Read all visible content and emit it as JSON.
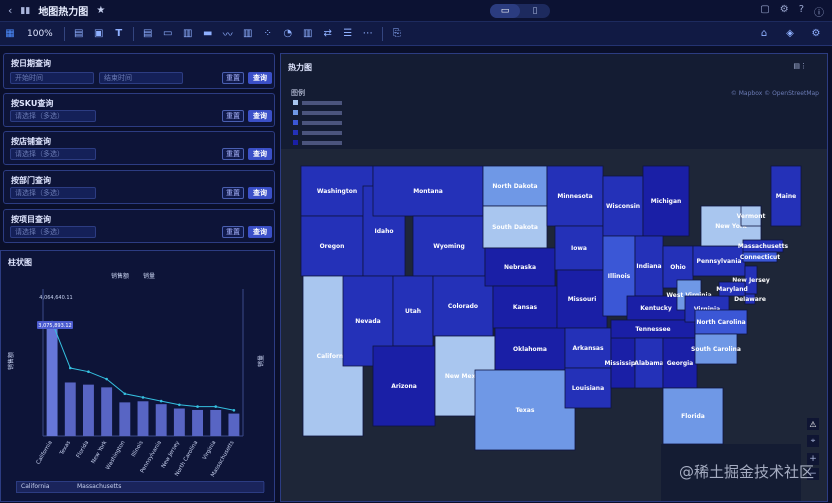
{
  "app": {
    "title": "地图热力图",
    "zoom": "100%",
    "device_modes": [
      "desktop",
      "mobile"
    ]
  },
  "filters": {
    "date": {
      "title": "按日期查询",
      "start_placeholder": "开始时间",
      "end_placeholder": "结束时间"
    },
    "sku": {
      "title": "按SKU查询",
      "placeholder": "请选择（多选）"
    },
    "store": {
      "title": "按店铺查询",
      "placeholder": "请选择（多选）"
    },
    "dept": {
      "title": "按部门查询",
      "placeholder": "请选择（多选）"
    },
    "project": {
      "title": "按项目查询",
      "placeholder": "请选择（多选）"
    },
    "reset_label": "重置",
    "query_label": "查询"
  },
  "map": {
    "title": "热力图",
    "legend_title": "图例",
    "attribution": "© Mapbox © OpenStreetMap",
    "legend": [
      {
        "color": "#a9c6ef"
      },
      {
        "color": "#6f98e6"
      },
      {
        "color": "#3b57d6"
      },
      {
        "color": "#2431b8"
      },
      {
        "color": "#1a1fa6"
      }
    ],
    "states": [
      "Washington",
      "Montana",
      "North Dakota",
      "Minnesota",
      "Oregon",
      "Idaho",
      "South Dakota",
      "Wisconsin",
      "Michigan",
      "Maine",
      "Wyoming",
      "Vermont",
      "New York",
      "Massachusetts",
      "Connecticut",
      "Iowa",
      "Nebraska",
      "Illinois",
      "Ohio",
      "Pennsylvania",
      "Nevada",
      "Utah",
      "Colorado",
      "Kansas",
      "Missouri",
      "Indiana",
      "New Jersey",
      "Delaware",
      "California",
      "West Virginia",
      "Maryland",
      "Kentucky",
      "Virginia",
      "Oklahoma",
      "Tennessee",
      "North Carolina",
      "Arizona",
      "New Mexico",
      "Arkansas",
      "South Carolina",
      "Texas",
      "Mississippi",
      "Alabama",
      "Georgia",
      "Louisiana",
      "Florida"
    ]
  },
  "chart": {
    "title": "柱状图",
    "legend": [
      "销售额",
      "销量"
    ],
    "ylabel_left": "销售额",
    "ylabel_right": "销量",
    "labels_top": "4,064,640.11",
    "tooltip": "3,075,893.12",
    "slider_start": "California",
    "slider_end": "Massachusetts"
  },
  "chart_data": {
    "type": "bar",
    "categories": [
      "California",
      "Texas",
      "Florida",
      "New York",
      "Washington",
      "Illinois",
      "Pennsylvania",
      "New Jersey",
      "North Carolina",
      "Virginia",
      "Massachusetts"
    ],
    "series": [
      {
        "name": "销售额",
        "values": [
          3075893,
          1480000,
          1420000,
          1345000,
          930000,
          960000,
          880000,
          760000,
          720000,
          720000,
          620000
        ]
      },
      {
        "name": "销量",
        "values": [
          62,
          37,
          35,
          31,
          23,
          21,
          19,
          17,
          16,
          16,
          14
        ]
      }
    ]
  }
}
